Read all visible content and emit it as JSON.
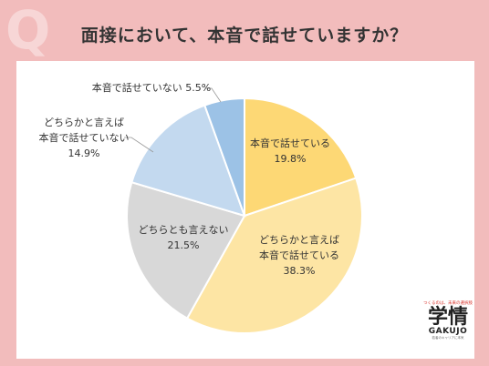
{
  "header": {
    "q_mark": "Q",
    "title": "面接において、本音で話せていますか？"
  },
  "colors": {
    "background": "#f2bcbc",
    "panel": "#ffffff",
    "title": "#333333"
  },
  "chart_data": {
    "type": "pie",
    "start_angle": "12 o'clock",
    "direction": "clockwise",
    "slices": [
      {
        "label_lines": [
          "本音で話せている"
        ],
        "value": 19.8,
        "value_text": "19.8%",
        "color": "#fdd875",
        "label_inside": true
      },
      {
        "label_lines": [
          "どちらかと言えば",
          "本音で話せている"
        ],
        "value": 38.3,
        "value_text": "38.3%",
        "color": "#fde5a4",
        "label_inside": true
      },
      {
        "label_lines": [
          "どちらとも言えない"
        ],
        "value": 21.5,
        "value_text": "21.5%",
        "color": "#d8d8d8",
        "label_inside": true
      },
      {
        "label_lines": [
          "どちらかと言えば",
          "本音で話せていない"
        ],
        "value": 14.9,
        "value_text": "14.9%",
        "color": "#c3d9ef",
        "label_inside": false
      },
      {
        "label_lines": [
          "本音で話せていない"
        ],
        "value": 5.5,
        "value_text": "5.5%",
        "color": "#9cc2e6",
        "label_inside": false
      }
    ]
  },
  "logo": {
    "tagline": "つくるのは、未来の選択肢",
    "kanji": "学情",
    "latin": "GAKUJO",
    "sub": "若者のキャリアに本気"
  }
}
